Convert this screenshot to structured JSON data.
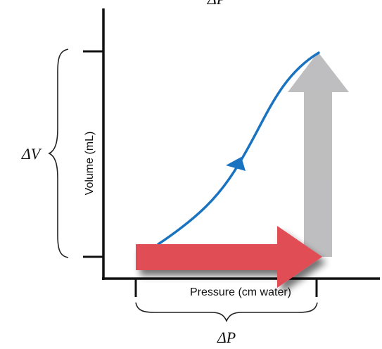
{
  "diagram": {
    "top_label": "ΔP",
    "delta_v_label": "ΔV",
    "delta_p_label": "ΔP",
    "y_axis_label": "Volume (mL)",
    "x_axis_label": "Pressure (cm water)"
  },
  "colors": {
    "axis": "#111111",
    "curve": "#1a73c0",
    "horizontal_arrow": "#e04e54",
    "vertical_arrow": "#b3b3b5",
    "brace": "#222222"
  }
}
